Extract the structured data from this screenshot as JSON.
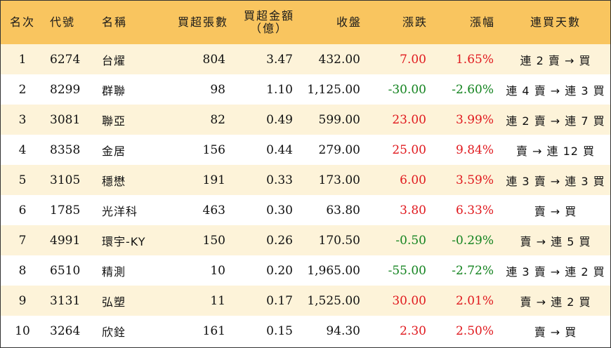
{
  "headers": {
    "rank": "名次",
    "code": "代號",
    "name": "名稱",
    "net_lots": "買超張數",
    "net_amount_line1": "買超金額",
    "net_amount_line2": "（億）",
    "close": "收盤",
    "change": "漲跌",
    "pct": "漲幅",
    "streak": "連買天數"
  },
  "colors": {
    "header_bg": "#f9c55f",
    "odd_row_bg": "#fdf3d9",
    "up": "#e0191e",
    "down": "#13831f"
  },
  "rows": [
    {
      "rank": "1",
      "code": "6274",
      "name": "台燿",
      "net_lots": "804",
      "net_amount": "3.47",
      "close": "432.00",
      "change": "7.00",
      "pct": "1.65%",
      "dir": "up",
      "streak": "連 2 賣 → 買"
    },
    {
      "rank": "2",
      "code": "8299",
      "name": "群聯",
      "net_lots": "98",
      "net_amount": "1.10",
      "close": "1,125.00",
      "change": "-30.00",
      "pct": "-2.60%",
      "dir": "down",
      "streak": "連 4 賣 → 連 3 買"
    },
    {
      "rank": "3",
      "code": "3081",
      "name": "聯亞",
      "net_lots": "82",
      "net_amount": "0.49",
      "close": "599.00",
      "change": "23.00",
      "pct": "3.99%",
      "dir": "up",
      "streak": "連 2 賣 → 連 7 買"
    },
    {
      "rank": "4",
      "code": "8358",
      "name": "金居",
      "net_lots": "156",
      "net_amount": "0.44",
      "close": "279.00",
      "change": "25.00",
      "pct": "9.84%",
      "dir": "up",
      "streak": "賣 → 連 12 買"
    },
    {
      "rank": "5",
      "code": "3105",
      "name": "穩懋",
      "net_lots": "191",
      "net_amount": "0.33",
      "close": "173.00",
      "change": "6.00",
      "pct": "3.59%",
      "dir": "up",
      "streak": "連 3 賣 → 連 3 買"
    },
    {
      "rank": "6",
      "code": "1785",
      "name": "光洋科",
      "net_lots": "463",
      "net_amount": "0.30",
      "close": "63.80",
      "change": "3.80",
      "pct": "6.33%",
      "dir": "up",
      "streak": "賣 → 買"
    },
    {
      "rank": "7",
      "code": "4991",
      "name": "環宇-KY",
      "net_lots": "150",
      "net_amount": "0.26",
      "close": "170.50",
      "change": "-0.50",
      "pct": "-0.29%",
      "dir": "down",
      "streak": "賣 → 連 5 買"
    },
    {
      "rank": "8",
      "code": "6510",
      "name": "精測",
      "net_lots": "10",
      "net_amount": "0.20",
      "close": "1,965.00",
      "change": "-55.00",
      "pct": "-2.72%",
      "dir": "down",
      "streak": "連 3 賣 → 連 2 買"
    },
    {
      "rank": "9",
      "code": "3131",
      "name": "弘塑",
      "net_lots": "11",
      "net_amount": "0.17",
      "close": "1,525.00",
      "change": "30.00",
      "pct": "2.01%",
      "dir": "up",
      "streak": "賣 → 連 2 買"
    },
    {
      "rank": "10",
      "code": "3264",
      "name": "欣銓",
      "net_lots": "161",
      "net_amount": "0.15",
      "close": "94.30",
      "change": "2.30",
      "pct": "2.50%",
      "dir": "up",
      "streak": "賣 → 買"
    }
  ]
}
